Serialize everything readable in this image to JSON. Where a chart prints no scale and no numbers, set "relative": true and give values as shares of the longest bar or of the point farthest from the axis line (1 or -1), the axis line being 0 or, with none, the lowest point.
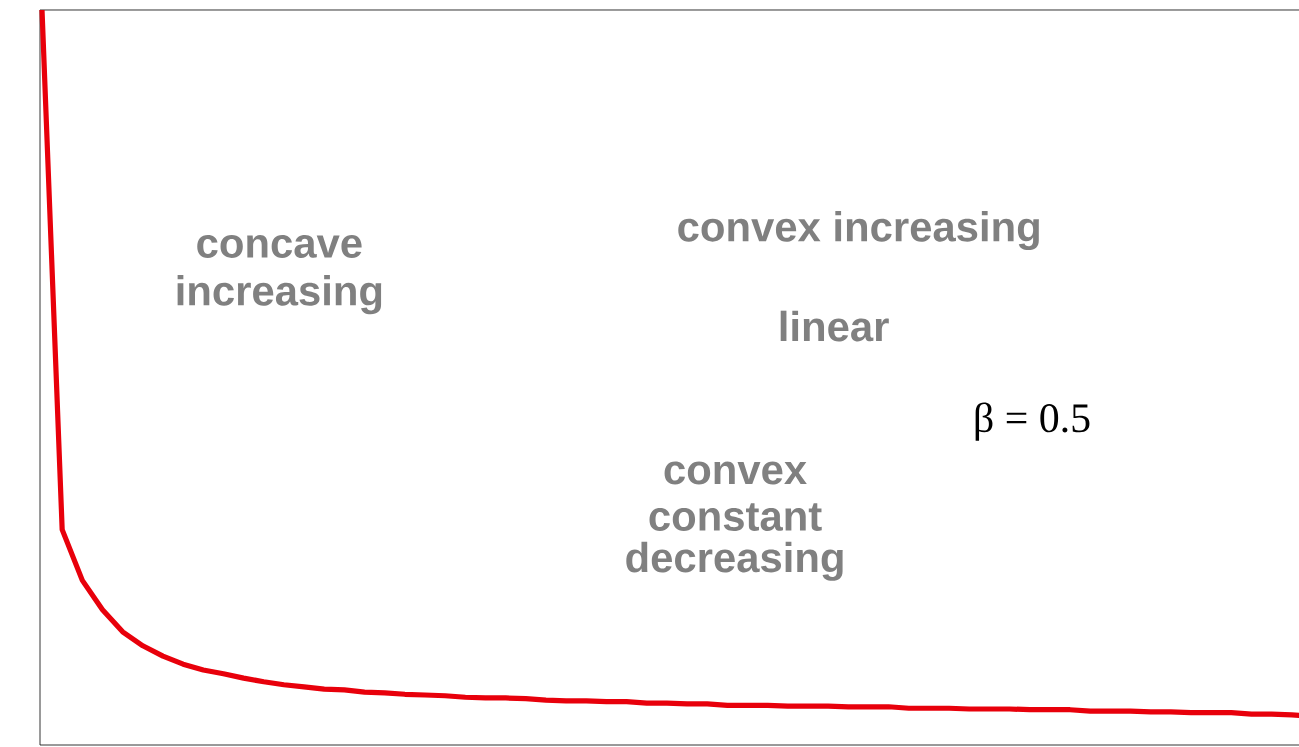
{
  "chart_data": {
    "type": "line",
    "relative": true,
    "categories": [
      null,
      null,
      null,
      null,
      null,
      null,
      null,
      null,
      null,
      null,
      null,
      null,
      null,
      null,
      null,
      null,
      null,
      null,
      null,
      null,
      null,
      null,
      null,
      null,
      null,
      null,
      null,
      null,
      null,
      null,
      null,
      null,
      null,
      null,
      null,
      null,
      null,
      null,
      null,
      null,
      null,
      null,
      null,
      null,
      null,
      null,
      null,
      null,
      null,
      null,
      null,
      null,
      null,
      null,
      null,
      null,
      null,
      null,
      null,
      null,
      null,
      null,
      null,
      null
    ],
    "series": [
      {
        "color": "#e8000b",
        "values": [
          1.0,
          0.293,
          0.224,
          0.184,
          0.154,
          0.135,
          0.121,
          0.11,
          0.102,
          0.097,
          0.091,
          0.086,
          0.082,
          0.079,
          0.076,
          0.075,
          0.072,
          0.071,
          0.069,
          0.068,
          0.067,
          0.065,
          0.064,
          0.064,
          0.063,
          0.061,
          0.06,
          0.06,
          0.059,
          0.059,
          0.057,
          0.057,
          0.056,
          0.056,
          0.054,
          0.054,
          0.054,
          0.053,
          0.053,
          0.053,
          0.052,
          0.052,
          0.052,
          0.05,
          0.05,
          0.05,
          0.049,
          0.049,
          0.049,
          0.048,
          0.048,
          0.048,
          0.046,
          0.046,
          0.046,
          0.045,
          0.045,
          0.044,
          0.044,
          0.044,
          0.042,
          0.042,
          0.041,
          0.039
        ]
      }
    ],
    "annotations": [
      "concave increasing",
      "convex increasing",
      "linear",
      "β = 0.5",
      "convex",
      "constant",
      "decreasing"
    ],
    "marker": "none",
    "line_style": "solid"
  }
}
